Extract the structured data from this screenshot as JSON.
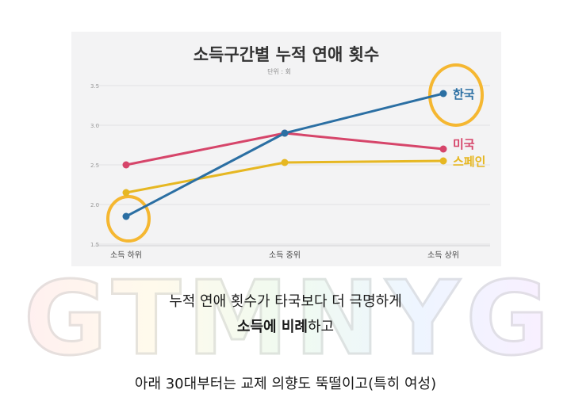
{
  "watermark": {
    "text": "GTMNYG"
  },
  "chart_data": {
    "type": "line",
    "title": "소득구간별 누적 연애 횟수",
    "subtitle": "단위 : 회",
    "categories": [
      "소득 하위",
      "소득 중위",
      "소득 상위"
    ],
    "yticks": [
      "3.5",
      "3.0",
      "2.5",
      "2.0",
      "1.5"
    ],
    "ylim": [
      1.5,
      3.5
    ],
    "grid": true,
    "series": [
      {
        "name": "한국",
        "values": [
          1.85,
          2.9,
          3.4
        ],
        "color": "#2b6fa3"
      },
      {
        "name": "미국",
        "values": [
          2.5,
          2.9,
          2.7
        ],
        "color": "#d6456a"
      },
      {
        "name": "스페인",
        "values": [
          2.15,
          2.53,
          2.55
        ],
        "color": "#e6b722"
      }
    ],
    "highlight_color": "#f5b731"
  },
  "captions": {
    "line1": "누적 연애 횟수가 타국보다 더 극명하게",
    "line2_bold": "소득에 비례",
    "line2_rest": "하고",
    "line3": "아래 30대부터는 교제 의향도 뚝떨이고(특히 여성)"
  }
}
